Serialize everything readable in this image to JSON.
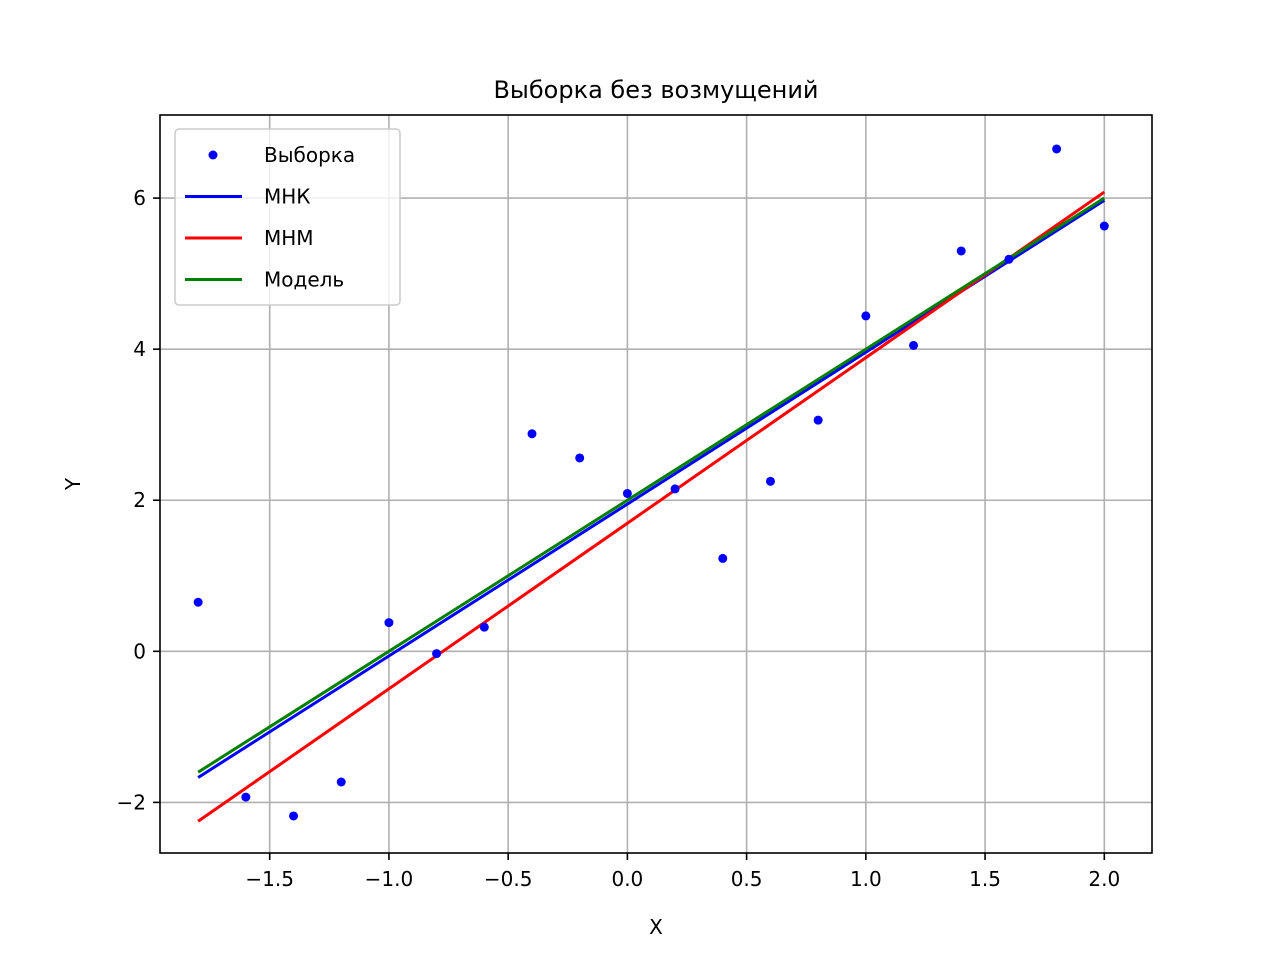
{
  "chart_data": {
    "type": "scatter",
    "title": "Выборка без возмущений",
    "xlabel": "X",
    "ylabel": "Y",
    "xlim": [
      -1.96,
      2.2
    ],
    "ylim": [
      -2.67,
      7.1
    ],
    "xticks": [
      -1.5,
      -1.0,
      -0.5,
      0.0,
      0.5,
      1.0,
      1.5,
      2.0
    ],
    "xtick_labels": [
      "−1.5",
      "−1.0",
      "−0.5",
      "0.0",
      "0.5",
      "1.0",
      "1.5",
      "2.0"
    ],
    "yticks": [
      -2,
      0,
      2,
      4,
      6
    ],
    "ytick_labels": [
      "−2",
      "0",
      "2",
      "4",
      "6"
    ],
    "grid": true,
    "legend_position": "top-left",
    "series": [
      {
        "name": "Выборка",
        "kind": "scatter",
        "color": "#0000ff",
        "x": [
          -1.8,
          -1.6,
          -1.4,
          -1.2,
          -1.0,
          -0.8,
          -0.6,
          -0.4,
          -0.2,
          0.0,
          0.2,
          0.4,
          0.6,
          0.8,
          1.0,
          1.2,
          1.4,
          1.6,
          1.8,
          2.0
        ],
        "y": [
          0.65,
          -1.93,
          -2.18,
          -1.73,
          0.38,
          -0.03,
          0.32,
          2.88,
          2.56,
          2.09,
          2.15,
          1.23,
          2.25,
          3.06,
          4.44,
          4.05,
          5.3,
          5.19,
          6.65,
          5.63
        ]
      },
      {
        "name": "МНК",
        "kind": "line",
        "color": "#0000ff",
        "x": [
          -1.8,
          2.0
        ],
        "y": [
          -1.67,
          5.97
        ]
      },
      {
        "name": "МНМ",
        "kind": "line",
        "color": "#ff0000",
        "x": [
          -1.8,
          2.0
        ],
        "y": [
          -2.25,
          6.08
        ]
      },
      {
        "name": "Модель",
        "kind": "line",
        "color": "#008000",
        "x": [
          -1.8,
          2.0
        ],
        "y": [
          -1.6,
          6.0
        ]
      }
    ]
  }
}
